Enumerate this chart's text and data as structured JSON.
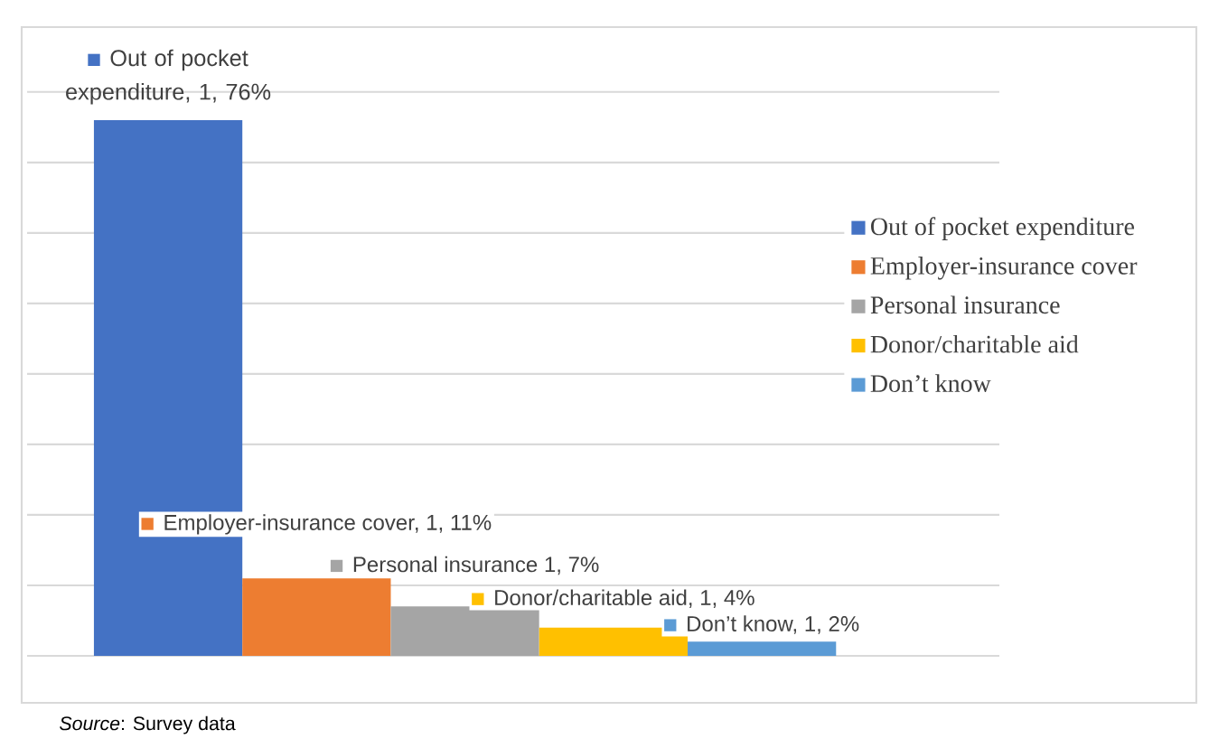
{
  "chart_data": {
    "type": "bar",
    "categories": [
      null
    ],
    "series": [
      {
        "name": "Out of pocket expenditure",
        "color": "#4472c4",
        "values": [
          76
        ],
        "value_labels": [
          "Out of pocket expenditure, 1, 76%"
        ]
      },
      {
        "name": "Employer-insurance cover",
        "color": "#ed7d31",
        "values": [
          11
        ],
        "value_labels": [
          "Employer-insurance cover, 1, 11%"
        ]
      },
      {
        "name": "Personal insurance",
        "color": "#a5a5a5",
        "values": [
          7
        ],
        "value_labels": [
          "Personal insurance 1, 7%"
        ]
      },
      {
        "name": "Donor/charitable aid",
        "color": "#ffc000",
        "values": [
          4
        ],
        "value_labels": [
          "Donor/charitable aid, 1, 4%"
        ]
      },
      {
        "name": "Don’t know",
        "color": "#5b9bd5",
        "values": [
          2
        ],
        "value_labels": [
          "Don’t know, 1, 2%"
        ]
      }
    ],
    "tick_labels": false,
    "grid": "y",
    "legend": "right",
    "annotations": [
      "*Source*: Survey data"
    ]
  }
}
